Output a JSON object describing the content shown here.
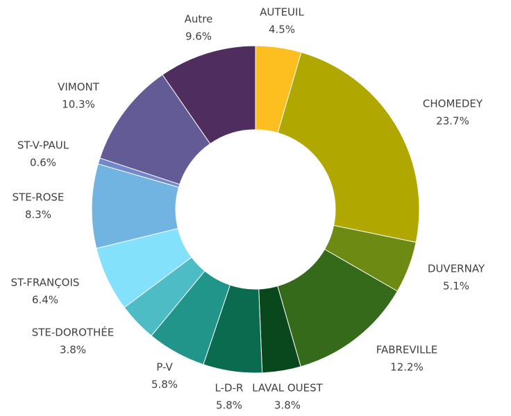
{
  "chart_data": {
    "type": "donut",
    "categories": [
      "AUTEUIL",
      "CHOMEDEY",
      "DUVERNAY",
      "FABREVILLE",
      "LAVAL OUEST",
      "L-D-R",
      "P-V",
      "STE-DOROTHÉE",
      "ST-FRANÇOIS",
      "STE-ROSE",
      "ST-V-PAUL",
      "VIMONT",
      "Autre"
    ],
    "values": [
      4.5,
      23.7,
      5.1,
      12.2,
      3.8,
      5.8,
      5.8,
      3.8,
      6.4,
      8.3,
      0.6,
      10.3,
      9.6
    ],
    "value_labels": [
      "4.5%",
      "23.7%",
      "5.1%",
      "12.2%",
      "3.8%",
      "5.8%",
      "5.8%",
      "3.8%",
      "6.4%",
      "8.3%",
      "0.6%",
      "10.3%",
      "9.6%"
    ],
    "colors": [
      "#fdbe1f",
      "#b0a800",
      "#6d8b12",
      "#356a1b",
      "#09481d",
      "#0a6b4e",
      "#21958a",
      "#4dbcc4",
      "#84e1fb",
      "#71b3e1",
      "#7388c8",
      "#625b95",
      "#4f2e5f"
    ]
  }
}
